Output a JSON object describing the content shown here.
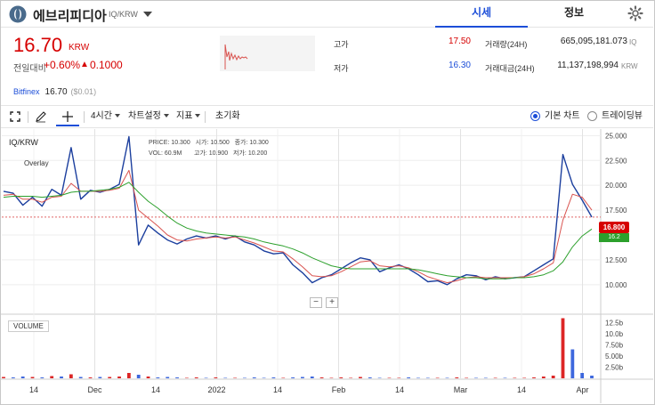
{
  "header": {
    "coin_name": "에브리피디아",
    "pair": "IQ/KRW",
    "tabs": [
      {
        "label": "시세",
        "active": true
      },
      {
        "label": "정보",
        "active": false
      }
    ]
  },
  "summary": {
    "price": "16.70",
    "price_unit": "KRW",
    "change_label": "전일대비",
    "change_rate": "+0.60%",
    "change_arrow": "▲",
    "change_amount": "0.1000",
    "high_label": "고가",
    "high_value": "17.50",
    "low_label": "저가",
    "low_value": "16.30",
    "volume_label": "거래량(24H)",
    "volume_value": "665,095,181.073",
    "volume_unit": "IQ",
    "turnover_label": "거래대금(24H)",
    "turnover_value": "11,137,198,994",
    "turnover_unit": "KRW",
    "exchange_name": "Bitfinex",
    "exchange_price": "16.70",
    "exchange_diff": "($0.01)"
  },
  "toolbar": {
    "interval_label": "4시간",
    "chart_settings_label": "차트설정",
    "indicators_label": "지표",
    "reset_label": "초기화",
    "basic_chart_label": "기본 차트",
    "tradingview_label": "트레이딩뷰",
    "selected_view": "기본 차트"
  },
  "legend": {
    "symbol": "IQ/KRW",
    "overlay": "Overlay",
    "price_label": "PRICE:",
    "price_value": "10.300",
    "open_label": "시가:",
    "open_value": "10.500",
    "close_label": "종가:",
    "close_value": "10.300",
    "vol_label": "VOL:",
    "vol_value": "60.9M",
    "high_label": "고가:",
    "high_value": "10.900",
    "low_label": "저가:",
    "low_value": "10.200",
    "volume_pane_label": "VOLUME"
  },
  "colors": {
    "up": "#d60000",
    "down": "#1c4ed8",
    "candle_line": "#1c3f9e",
    "ma_short": "#d9534f",
    "ma_long": "#2ca02c",
    "accent": "#1c4ed8"
  },
  "chart_data": {
    "type": "line",
    "price_axis": {
      "ticks": [
        "25.000",
        "22.500",
        "20.000",
        "17.500",
        "15.000",
        "12.500",
        "10.000"
      ],
      "ylim": [
        7.3,
        25.3
      ]
    },
    "volume_axis": {
      "ticks": [
        "12.5b",
        "10.0b",
        "7.50b",
        "5.00b",
        "2.50b"
      ]
    },
    "x_tick_labels": [
      "14",
      "Dec",
      "14",
      "2022",
      "14",
      "Feb",
      "14",
      "Mar",
      "14",
      "Apr"
    ],
    "current_price_label": "16.800",
    "current_price_secondary": "16.2",
    "current_price": 16.8,
    "series": [
      {
        "values": [
          19.4,
          19.2,
          18.0,
          18.8,
          17.9,
          19.6,
          19.0,
          23.8,
          18.6,
          19.5,
          19.3,
          19.6,
          20.1,
          24.9,
          14.0,
          16.0,
          15.2,
          14.5,
          14.1,
          14.6,
          14.9,
          14.7,
          14.9,
          14.6,
          14.9,
          14.3,
          14.0,
          13.4,
          13.1,
          13.2,
          12.0,
          11.2,
          10.2,
          10.7,
          11.0,
          11.6,
          12.2,
          12.7,
          12.5,
          11.3,
          11.7,
          12.0,
          11.6,
          11.0,
          10.3,
          10.4,
          10.0,
          10.6,
          11.0,
          10.9,
          10.5,
          10.8,
          10.6,
          10.7,
          10.8,
          11.4,
          12.0,
          12.6,
          23.1,
          20.1,
          18.5,
          16.8
        ]
      },
      {
        "values": [
          19.0,
          19.1,
          18.6,
          18.6,
          18.3,
          18.8,
          18.9,
          20.2,
          19.4,
          19.4,
          19.4,
          19.5,
          19.7,
          21.5,
          17.5,
          16.7,
          15.9,
          15.0,
          14.5,
          14.4,
          14.6,
          14.7,
          14.8,
          14.7,
          14.8,
          14.5,
          14.2,
          13.8,
          13.4,
          13.3,
          12.6,
          11.8,
          10.9,
          10.8,
          10.9,
          11.3,
          11.8,
          12.3,
          12.4,
          11.9,
          11.8,
          11.9,
          11.7,
          11.3,
          10.8,
          10.5,
          10.2,
          10.4,
          10.7,
          10.8,
          10.7,
          10.7,
          10.7,
          10.7,
          10.8,
          11.1,
          11.6,
          12.2,
          16.5,
          19.1,
          18.8,
          17.5
        ]
      },
      {
        "values": [
          18.8,
          18.9,
          18.9,
          18.9,
          18.8,
          18.9,
          19.0,
          19.3,
          19.4,
          19.4,
          19.5,
          19.6,
          19.8,
          20.3,
          19.3,
          18.4,
          17.7,
          16.9,
          16.2,
          15.7,
          15.4,
          15.2,
          15.1,
          15.0,
          14.9,
          14.8,
          14.6,
          14.3,
          14.1,
          13.9,
          13.6,
          13.2,
          12.7,
          12.3,
          11.9,
          11.7,
          11.6,
          11.6,
          11.6,
          11.6,
          11.6,
          11.6,
          11.6,
          11.5,
          11.3,
          11.1,
          10.9,
          10.8,
          10.7,
          10.7,
          10.6,
          10.6,
          10.6,
          10.7,
          10.7,
          10.8,
          11.0,
          11.4,
          12.3,
          13.8,
          14.9,
          15.6
        ]
      }
    ],
    "volume": [
      0.3,
      0.2,
      0.4,
      0.3,
      0.2,
      0.5,
      0.4,
      0.9,
      0.3,
      0.2,
      0.3,
      0.3,
      0.4,
      1.2,
      0.8,
      0.4,
      0.2,
      0.3,
      0.2,
      0.1,
      0.2,
      0.1,
      0.2,
      0.1,
      0.1,
      0.1,
      0.2,
      0.1,
      0.2,
      0.1,
      0.2,
      0.3,
      0.4,
      0.2,
      0.1,
      0.2,
      0.1,
      0.3,
      0.2,
      0.1,
      0.1,
      0.1,
      0.2,
      0.1,
      0.1,
      0.1,
      0.1,
      0.2,
      0.1,
      0.1,
      0.1,
      0.1,
      0.1,
      0.1,
      0.1,
      0.2,
      0.4,
      0.6,
      13.5,
      6.5,
      1.2,
      0.6
    ],
    "grid": true
  }
}
